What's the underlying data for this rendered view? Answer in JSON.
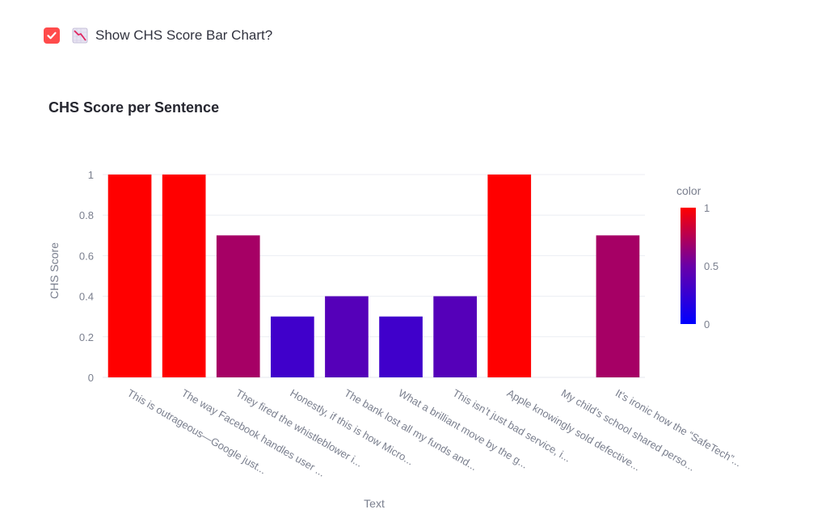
{
  "toggle": {
    "checked": true,
    "icon": "chart-decreasing-icon",
    "label": "Show CHS Score Bar Chart?",
    "accent_color": "#ff4b4b"
  },
  "chart_data": {
    "type": "bar",
    "title": "CHS Score per Sentence",
    "xlabel": "Text",
    "ylabel": "CHS Score",
    "ylim": [
      0,
      1
    ],
    "yticks": [
      0,
      0.2,
      0.4,
      0.6,
      0.8,
      1
    ],
    "ytick_labels": [
      "0",
      "0.2",
      "0.4",
      "0.6",
      "0.8",
      "1"
    ],
    "categories": [
      "This is outrageous—Google just...",
      "The way Facebook handles user ...",
      "They fired the whistleblower i...",
      "Honestly, if this is how Micro...",
      "The bank lost all my funds and...",
      "What a brilliant move by the g...",
      "This isn’t just bad service, i...",
      "Apple knowingly sold defective...",
      "My child’s school shared perso...",
      "It’s ironic how the “SafeTech”..."
    ],
    "values": [
      1,
      1,
      0.7,
      0.3,
      0.4,
      0.3,
      0.4,
      1,
      0,
      0.7
    ],
    "colorbar": {
      "title": "color",
      "range": [
        0,
        1
      ],
      "ticks": [
        0,
        0.5,
        1
      ],
      "tick_labels": [
        "0",
        "0.5",
        "1"
      ],
      "low_color": "#0000ff",
      "high_color": "#ff0000"
    },
    "grid": true
  }
}
